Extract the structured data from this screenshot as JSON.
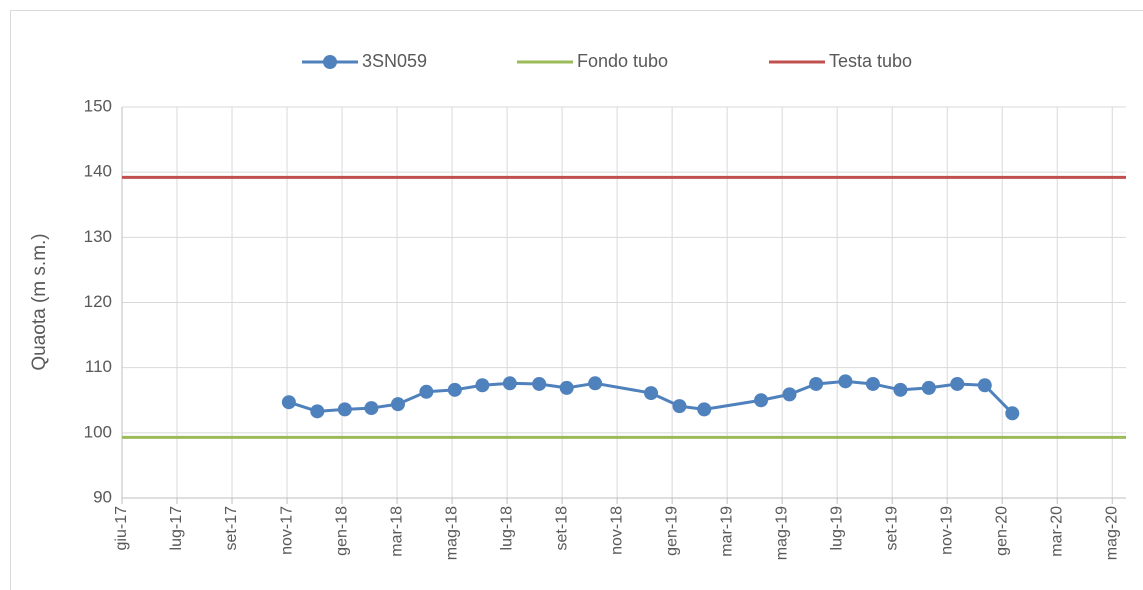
{
  "chart_data": {
    "type": "line",
    "y_label": "Quaota (m s.m.)",
    "x": [
      "2017-11-30",
      "2017-12-31",
      "2018-01-30",
      "2018-02-28",
      "2018-03-29",
      "2018-04-29",
      "2018-05-30",
      "2018-06-29",
      "2018-07-29",
      "2018-08-30",
      "2018-09-29",
      "2018-10-30",
      "2018-12-30",
      "2019-01-30",
      "2019-02-26",
      "2019-04-29",
      "2019-05-30",
      "2019-06-28",
      "2019-07-30",
      "2019-08-29",
      "2019-09-28",
      "2019-10-29",
      "2019-11-29",
      "2019-12-29",
      "2020-01-28"
    ],
    "series": [
      {
        "name": "3SN059",
        "color": "#4f81bd",
        "markers": true,
        "values": [
          104.7,
          103.3,
          103.6,
          103.8,
          104.4,
          106.3,
          106.6,
          107.3,
          107.6,
          107.5,
          106.9,
          107.6,
          106.1,
          104.1,
          103.6,
          105.0,
          105.9,
          107.5,
          107.9,
          107.5,
          106.6,
          106.9,
          107.5,
          107.3,
          103.0
        ]
      },
      {
        "name": "Fondo tubo",
        "color": "#9bbb59",
        "markers": false,
        "x": [
          "2017-06-01",
          "2020-05-31"
        ],
        "values": [
          99.3,
          99.3
        ]
      },
      {
        "name": "Testa tubo",
        "color": "#c0504d",
        "markers": false,
        "x": [
          "2017-06-01",
          "2020-05-31"
        ],
        "values": [
          139.2,
          139.2
        ]
      }
    ],
    "xlim": [
      "2017-06-01",
      "2020-05-31"
    ],
    "xticks": [
      {
        "value": "2017-06-01",
        "label": "giu-17"
      },
      {
        "value": "2017-07-31",
        "label": "lug-17"
      },
      {
        "value": "2017-09-29",
        "label": "set-17"
      },
      {
        "value": "2017-11-28",
        "label": "nov-17"
      },
      {
        "value": "2018-01-27",
        "label": "gen-18"
      },
      {
        "value": "2018-03-28",
        "label": "mar-18"
      },
      {
        "value": "2018-05-27",
        "label": "mag-18"
      },
      {
        "value": "2018-07-26",
        "label": "lug-18"
      },
      {
        "value": "2018-09-24",
        "label": "set-18"
      },
      {
        "value": "2018-11-23",
        "label": "nov-18"
      },
      {
        "value": "2019-01-22",
        "label": "gen-19"
      },
      {
        "value": "2019-03-23",
        "label": "mar-19"
      },
      {
        "value": "2019-05-22",
        "label": "mag-19"
      },
      {
        "value": "2019-07-21",
        "label": "lug-19"
      },
      {
        "value": "2019-09-19",
        "label": "set-19"
      },
      {
        "value": "2019-11-18",
        "label": "nov-19"
      },
      {
        "value": "2020-01-17",
        "label": "gen-20"
      },
      {
        "value": "2020-03-17",
        "label": "mar-20"
      },
      {
        "value": "2020-05-16",
        "label": "mag-20"
      }
    ],
    "ylim": [
      90,
      150
    ],
    "yticks": [
      90,
      100,
      110,
      120,
      130,
      140,
      150
    ],
    "grid": true,
    "legend": "top"
  }
}
